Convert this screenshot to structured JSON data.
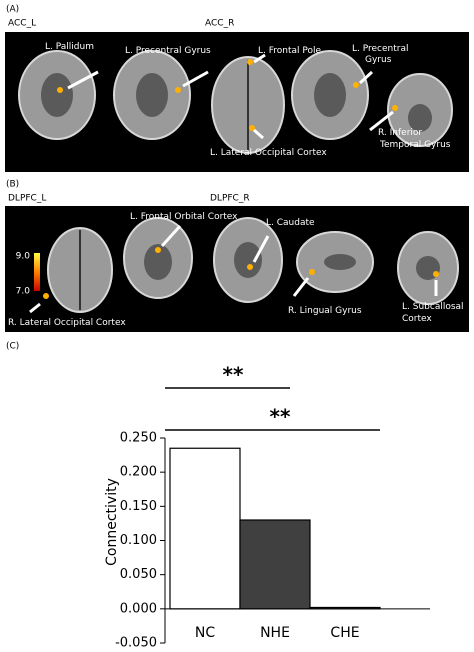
{
  "panel_a": {
    "label": "(A)",
    "group_left": "ACC_L",
    "group_right": "ACC_R",
    "regions": [
      [
        "L. Pallidum"
      ],
      [
        "L. Precentral Gyrus"
      ],
      [
        "L. Frontal Pole"
      ],
      [
        "L. Precentral",
        "Gyrus"
      ],
      [
        "L. Lateral Occipital Cortex"
      ],
      [
        "R. Inferior",
        "Temporal Gyrus"
      ]
    ]
  },
  "panel_b": {
    "label": "(B)",
    "group_left": "DLPFC_L",
    "group_right": "DLPFC_R",
    "colorbar": [
      "9.0",
      "7.0"
    ],
    "regions": [
      [
        "L. Frontal Orbital Cortex"
      ],
      [
        "L. Caudate"
      ],
      [
        "R. Lateral Occipital Cortex"
      ],
      [
        "R. Lingual Gyrus"
      ],
      [
        "L. Subcallosal",
        "Cortex"
      ]
    ]
  },
  "chart_data": {
    "type": "bar",
    "label": "(C)",
    "y_label": "Connectivity",
    "categories": [
      "NC",
      "NHE",
      "CHE"
    ],
    "values": [
      0.235,
      0.13,
      0.002
    ],
    "colors": [
      "#ffffff",
      "#404040",
      "#404040"
    ],
    "ylim": [
      -0.05,
      0.25
    ],
    "yticks": [
      {
        "value": -0.05,
        "label": "-0.050"
      },
      {
        "value": 0,
        "label": "0.000"
      },
      {
        "value": 0.05,
        "label": "0.050"
      },
      {
        "value": 0.1,
        "label": "0.100"
      },
      {
        "value": 0.15,
        "label": "0.150"
      },
      {
        "value": 0.2,
        "label": "0.200"
      },
      {
        "value": 0.25,
        "label": "0.250"
      }
    ],
    "annotations": [
      "**",
      "**"
    ]
  }
}
